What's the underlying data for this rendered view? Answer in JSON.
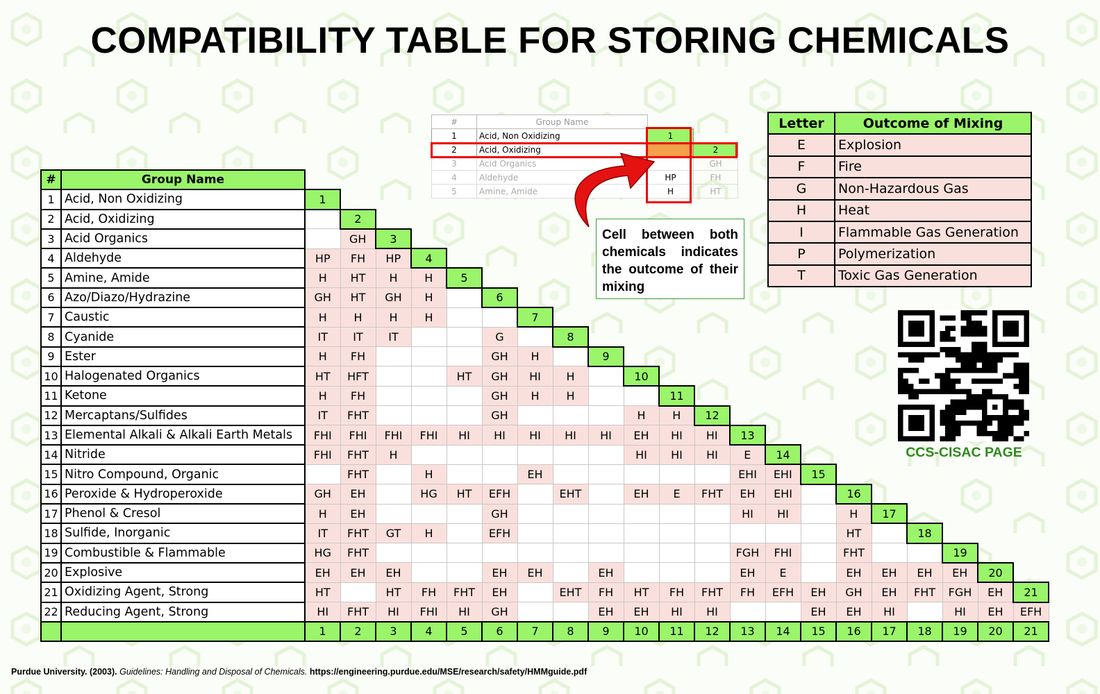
{
  "title": "COMPATIBILITY TABLE FOR STORING CHEMICALS",
  "colors": {
    "accent_green": "#9af56a",
    "pair_pink": "#fae0dc",
    "highlight_red": "#e00000",
    "highlight_orange": "#f5a04a",
    "qr_label_green": "#2f8a1f"
  },
  "main_table": {
    "header_num": "#",
    "header_name": "Group Name",
    "groups": [
      {
        "num": "1",
        "name": "Acid, Non Oxidizing",
        "cells": []
      },
      {
        "num": "2",
        "name": "Acid, Oxidizing",
        "cells": [
          ""
        ]
      },
      {
        "num": "3",
        "name": "Acid Organics",
        "cells": [
          "",
          "GH"
        ]
      },
      {
        "num": "4",
        "name": "Aldehyde",
        "cells": [
          "HP",
          "FH",
          "HP"
        ]
      },
      {
        "num": "5",
        "name": "Amine, Amide",
        "cells": [
          "H",
          "HT",
          "H",
          "H"
        ]
      },
      {
        "num": "6",
        "name": "Azo/Diazo/Hydrazine",
        "cells": [
          "GH",
          "HT",
          "GH",
          "H",
          ""
        ]
      },
      {
        "num": "7",
        "name": "Caustic",
        "cells": [
          "H",
          "H",
          "H",
          "H",
          "",
          ""
        ]
      },
      {
        "num": "8",
        "name": "Cyanide",
        "cells": [
          "IT",
          "IT",
          "IT",
          "",
          "",
          "G",
          ""
        ]
      },
      {
        "num": "9",
        "name": "Ester",
        "cells": [
          "H",
          "FH",
          "",
          "",
          "",
          "GH",
          "H",
          ""
        ]
      },
      {
        "num": "10",
        "name": "Halogenated Organics",
        "cells": [
          "HT",
          "HFT",
          "",
          "",
          "HT",
          "GH",
          "HI",
          "H",
          ""
        ]
      },
      {
        "num": "11",
        "name": "Ketone",
        "cells": [
          "H",
          "FH",
          "",
          "",
          "",
          "GH",
          "H",
          "H",
          "",
          ""
        ]
      },
      {
        "num": "12",
        "name": "Mercaptans/Sulfides",
        "cells": [
          "IT",
          "FHT",
          "",
          "",
          "",
          "GH",
          "",
          "",
          "",
          "H",
          "H"
        ]
      },
      {
        "num": "13",
        "name": "Elemental Alkali & Alkali Earth Metals",
        "cells": [
          "FHI",
          "FHI",
          "FHI",
          "FHI",
          "HI",
          "HI",
          "HI",
          "HI",
          "HI",
          "EH",
          "HI",
          "HI"
        ]
      },
      {
        "num": "14",
        "name": "Nitride",
        "cells": [
          "FHI",
          "FHT",
          "H",
          "",
          "",
          "",
          "",
          "",
          "",
          "HI",
          "HI",
          "HI",
          "E"
        ]
      },
      {
        "num": "15",
        "name": "Nitro Compound, Organic",
        "cells": [
          "",
          "FHT",
          "",
          "H",
          "",
          "",
          "EH",
          "",
          "",
          "",
          "",
          "",
          "EHI",
          "EHI"
        ]
      },
      {
        "num": "16",
        "name": "Peroxide & Hydroperoxide",
        "cells": [
          "GH",
          "EH",
          "",
          "HG",
          "HT",
          "EFH",
          "",
          "EHT",
          "",
          "EH",
          "E",
          "FHT",
          "EH",
          "EHI",
          ""
        ]
      },
      {
        "num": "17",
        "name": "Phenol & Cresol",
        "cells": [
          "H",
          "EH",
          "",
          "",
          "",
          "GH",
          "",
          "",
          "",
          "",
          "",
          "",
          "HI",
          "HI",
          "",
          "H"
        ]
      },
      {
        "num": "18",
        "name": "Sulfide, Inorganic",
        "cells": [
          "IT",
          "FHT",
          "GT",
          "H",
          "",
          "EFH",
          "",
          "",
          "",
          "",
          "",
          "",
          "",
          "",
          "",
          "HT",
          ""
        ]
      },
      {
        "num": "19",
        "name": "Combustible & Flammable",
        "cells": [
          "HG",
          "FHT",
          "",
          "",
          "",
          "",
          "",
          "",
          "",
          "",
          "",
          "",
          "FGH",
          "FHI",
          "",
          "FHT",
          "",
          ""
        ]
      },
      {
        "num": "20",
        "name": "Explosive",
        "cells": [
          "EH",
          "EH",
          "EH",
          "",
          "",
          "EH",
          "EH",
          "",
          "EH",
          "",
          "",
          "",
          "EH",
          "E",
          "",
          "EH",
          "EH",
          "EH",
          "EH"
        ]
      },
      {
        "num": "21",
        "name": "Oxidizing Agent, Strong",
        "cells": [
          "HT",
          "",
          "HT",
          "FH",
          "FHT",
          "EH",
          "",
          "EHT",
          "FH",
          "HT",
          "FH",
          "FHT",
          "FH",
          "EFH",
          "EH",
          "GH",
          "EH",
          "FHT",
          "FGH",
          "EH"
        ]
      },
      {
        "num": "22",
        "name": "Reducing Agent, Strong",
        "cells": [
          "HI",
          "FHT",
          "HI",
          "FHI",
          "HI",
          "GH",
          "",
          "",
          "EH",
          "EH",
          "HI",
          "HI",
          "",
          "",
          "EH",
          "EH",
          "HI",
          "",
          "HI",
          "EH",
          "EFH"
        ]
      }
    ],
    "footer_numbers": [
      "1",
      "2",
      "3",
      "4",
      "5",
      "6",
      "7",
      "8",
      "9",
      "10",
      "11",
      "12",
      "13",
      "14",
      "15",
      "16",
      "17",
      "18",
      "19",
      "20",
      "21"
    ]
  },
  "example": {
    "header_num": "#",
    "header_name": "Group Name",
    "rows": [
      {
        "num": "1",
        "name": "Acid, Non Oxidizing",
        "c1": "1",
        "c2": ""
      },
      {
        "num": "2",
        "name": "Acid, Oxidizing",
        "c1": "",
        "c2": "2"
      },
      {
        "num": "3",
        "name": "Acid Organics",
        "c1": "",
        "c2": "GH"
      },
      {
        "num": "4",
        "name": "Aldehyde",
        "c1": "HP",
        "c2": "FH"
      },
      {
        "num": "5",
        "name": "Amine, Amide",
        "c1": "H",
        "c2": "HT"
      }
    ],
    "callout": "Cell between both chemicals indicates the outcome of their mixing"
  },
  "legend": {
    "header_letter": "Letter",
    "header_outcome": "Outcome of Mixing",
    "items": [
      {
        "letter": "E",
        "outcome": "Explosion"
      },
      {
        "letter": "F",
        "outcome": "Fire"
      },
      {
        "letter": "G",
        "outcome": "Non-Hazardous Gas"
      },
      {
        "letter": "H",
        "outcome": "Heat"
      },
      {
        "letter": "I",
        "outcome": "Flammable Gas Generation"
      },
      {
        "letter": "P",
        "outcome": "Polymerization"
      },
      {
        "letter": "T",
        "outcome": "Toxic Gas Generation"
      }
    ]
  },
  "qr": {
    "icon": "qr-code",
    "label": "CCS-CISAC PAGE"
  },
  "citation": {
    "author": "Purdue University. (2003).",
    "work": "Guidelines: Handling and Disposal of Chemicals.",
    "url": "https://engineering.purdue.edu/MSE/research/safety/HMMguide.pdf"
  }
}
